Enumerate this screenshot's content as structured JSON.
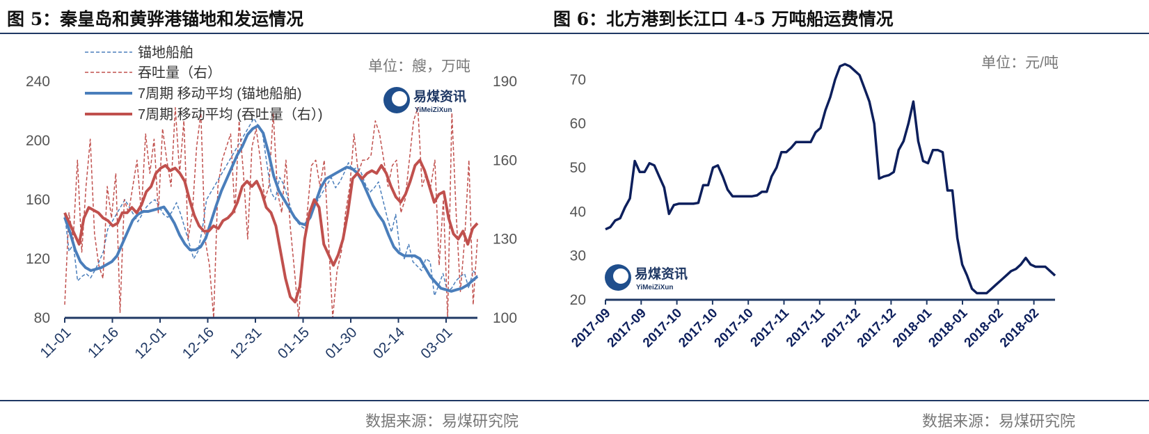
{
  "left": {
    "title": "图 5：秦皇岛和黄骅港锚地和发运情况",
    "unit": "单位：艘，万吨",
    "source": "数据来源：易煤研究院",
    "logo": {
      "cn": "易煤资讯",
      "en": "YiMeiZiXun"
    }
  },
  "right": {
    "title": "图 6：北方港到长江口 4-5 万吨船运费情况",
    "unit": "单位：元/吨",
    "source": "数据来源：易煤研究院",
    "logo": {
      "cn": "易煤资讯",
      "en": "YiMeiZiXun"
    }
  },
  "colors": {
    "blue": "#4a7ebb",
    "red": "#c0504d",
    "navy": "#0d1f5c",
    "axis": "#1f3864"
  },
  "chart_data": [
    {
      "type": "line",
      "x_tick_labels": [
        "11-01",
        "11-16",
        "12-01",
        "12-16",
        "12-31",
        "01-15",
        "01-30",
        "02-14",
        "03-01"
      ],
      "y_left": {
        "ticks": [
          80,
          120,
          160,
          200,
          240
        ],
        "ylim": [
          80,
          240
        ]
      },
      "y_right": {
        "ticks": [
          100,
          130,
          160,
          190
        ],
        "ylim": [
          100,
          190
        ]
      },
      "legend_placement": "top-left",
      "series": [
        {
          "name": "锚地船舶",
          "axis": "left",
          "style": "dashed",
          "color": "#4a7ebb",
          "values": [
            150,
            125,
            130,
            105,
            108,
            110,
            107,
            112,
            118,
            125,
            140,
            145,
            150,
            155,
            160,
            155,
            150,
            145,
            150,
            155,
            158,
            160,
            155,
            150,
            148,
            152,
            158,
            150,
            140,
            130,
            120,
            125,
            140,
            160,
            165,
            170,
            175,
            180,
            185,
            190,
            195,
            200,
            205,
            210,
            215,
            210,
            205,
            185,
            165,
            160,
            175,
            170,
            160,
            150,
            145,
            142,
            140,
            148,
            155,
            160,
            165,
            170,
            175,
            168,
            172,
            178,
            185,
            180,
            182,
            178,
            170,
            165,
            168,
            172,
            160,
            148,
            138,
            150,
            125,
            120,
            130,
            118,
            115,
            112,
            120,
            118,
            95,
            102,
            110,
            98,
            100,
            105,
            108,
            110,
            100,
            112,
            108
          ]
        },
        {
          "name": "吞吐量（右）",
          "axis": "right",
          "style": "dashed",
          "color": "#c0504d",
          "values": [
            105,
            140,
            130,
            160,
            125,
            150,
            168,
            132,
            120,
            115,
            150,
            138,
            155,
            102,
            145,
            140,
            150,
            160,
            140,
            170,
            155,
            168,
            140,
            172,
            160,
            150,
            180,
            155,
            175,
            130,
            140,
            165,
            178,
            130,
            120,
            100,
            150,
            160,
            165,
            170,
            140,
            175,
            155,
            130,
            165,
            172,
            160,
            145,
            150,
            178,
            148,
            140,
            160,
            135,
            118,
            100,
            125,
            140,
            158,
            160,
            150,
            160,
            130,
            100,
            118,
            125,
            140,
            150,
            170,
            155,
            160,
            160,
            162,
            175,
            170,
            160,
            150,
            158,
            160,
            140,
            145,
            160,
            175,
            180,
            150,
            155,
            150,
            160,
            120,
            145,
            100,
            178,
            140,
            110,
            130,
            160,
            105,
            130
          ]
        },
        {
          "name": "7周期 移动平均 (锚地船舶)",
          "axis": "left",
          "style": "solid",
          "color": "#4a7ebb",
          "values": [
            148,
            138,
            126,
            118,
            114,
            112,
            113,
            114,
            116,
            118,
            122,
            130,
            138,
            146,
            150,
            152,
            152,
            153,
            154,
            155,
            150,
            144,
            136,
            130,
            126,
            126,
            128,
            134,
            145,
            156,
            166,
            174,
            182,
            190,
            196,
            204,
            208,
            210,
            205,
            192,
            176,
            166,
            160,
            154,
            148,
            144,
            143,
            148,
            158,
            168,
            174,
            176,
            178,
            180,
            182,
            181,
            178,
            172,
            164,
            156,
            150,
            145,
            136,
            128,
            124,
            122,
            122,
            122,
            120,
            114,
            108,
            104,
            100,
            99,
            98,
            99,
            100,
            102,
            105,
            108
          ]
        },
        {
          "name": "7周期 移动平均 (吞吐量（右）)",
          "axis": "right",
          "style": "solid",
          "color": "#c0504d",
          "values": [
            140,
            136,
            132,
            128,
            138,
            142,
            141,
            140,
            138,
            137,
            135,
            136,
            140,
            140,
            142,
            140,
            143,
            148,
            150,
            155,
            157,
            158,
            156,
            157,
            155,
            152,
            145,
            139,
            135,
            133,
            133,
            135,
            134,
            137,
            138,
            140,
            144,
            150,
            152,
            150,
            152,
            148,
            142,
            140,
            135,
            125,
            115,
            108,
            106,
            112,
            130,
            140,
            145,
            142,
            128,
            124,
            120,
            124,
            130,
            140,
            153,
            155,
            153,
            155,
            156,
            155,
            158,
            155,
            150,
            146,
            144,
            147,
            152,
            158,
            160,
            156,
            150,
            144,
            147,
            148,
            138,
            132,
            130,
            133,
            128,
            134,
            136
          ]
        }
      ]
    },
    {
      "type": "line",
      "x_tick_labels": [
        "2017-09",
        "2017-09",
        "2017-10",
        "2017-10",
        "2017-10",
        "2017-11",
        "2017-11",
        "2017-12",
        "2017-12",
        "2018-01",
        "2018-01",
        "2018-02",
        "2018-02"
      ],
      "y": {
        "ticks": [
          20,
          30,
          40,
          50,
          60,
          70
        ],
        "ylim": [
          20,
          77
        ]
      },
      "series": [
        {
          "name": "",
          "style": "solid",
          "color": "#0d1f5c",
          "values": [
            36,
            36.5,
            38,
            38.5,
            41,
            43,
            51.5,
            49,
            49,
            51,
            50.5,
            48,
            45.5,
            39.5,
            41.5,
            41.8,
            41.8,
            41.8,
            41.8,
            42,
            46,
            46,
            50,
            50.5,
            48,
            45,
            43.5,
            43.5,
            43.5,
            43.5,
            43.5,
            43.7,
            44.5,
            44.5,
            48,
            50,
            53.5,
            53.5,
            54.5,
            55.8,
            55.8,
            55.8,
            55.8,
            58,
            59,
            63,
            66,
            70,
            73,
            73.5,
            73,
            72,
            71,
            68,
            65,
            60,
            47.5,
            48,
            48.3,
            49,
            54,
            56,
            60,
            65,
            56,
            51.5,
            51,
            54,
            54,
            53.5,
            44.8,
            44.8,
            34,
            28,
            25.5,
            22.5,
            21.5,
            21.5,
            21.5,
            22.5,
            23.5,
            24.5,
            25.5,
            26.5,
            27,
            28,
            29.5,
            28,
            27.5,
            27.5,
            27.5,
            26.5,
            25.5
          ]
        }
      ]
    }
  ]
}
